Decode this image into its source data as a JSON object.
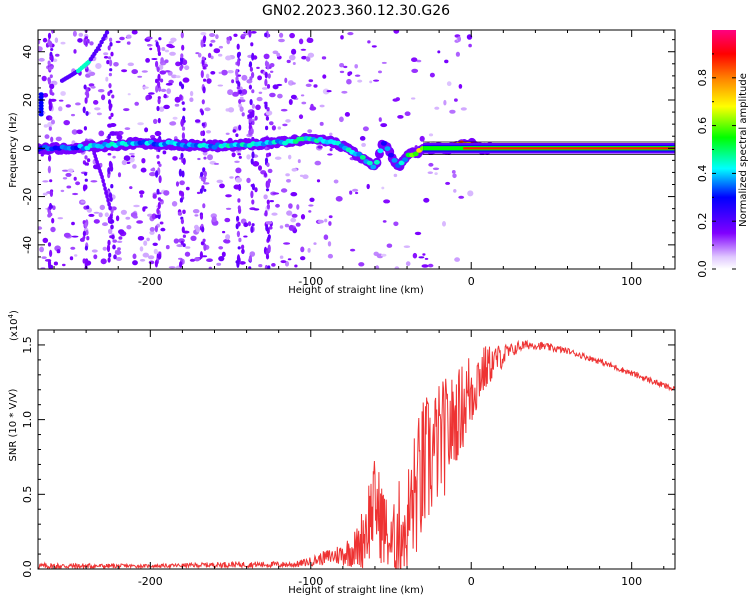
{
  "title": "GN02.2023.360.12.30.G26",
  "chart_data": [
    {
      "type": "heatmap",
      "title": "GN02.2023.360.12.30.G26",
      "xlabel": "Height of straight line (km)",
      "ylabel": "Frequency (Hz)",
      "xlim": [
        -270,
        127
      ],
      "ylim": [
        -50,
        49
      ],
      "xticks": [
        "-200",
        "-100",
        "0",
        "100"
      ],
      "xtick_values": [
        -200,
        -100,
        0,
        100
      ],
      "yticks": [
        "-40",
        "-20",
        "0",
        "20",
        "40"
      ],
      "ytick_values": [
        -40,
        -20,
        0,
        20,
        40
      ],
      "colorbar": {
        "label": "Normalized spectral amplitude",
        "range": [
          0,
          1
        ],
        "ticks": [
          "0.0",
          "0.2",
          "0.4",
          "0.6",
          "0.8"
        ],
        "tick_values": [
          0.0,
          0.2,
          0.4,
          0.6,
          0.8
        ],
        "colormap": [
          "#ffffff",
          "#c8b4ff",
          "#8000ff",
          "#0000ff",
          "#00ffff",
          "#00ff00",
          "#ffff00",
          "#ff8000",
          "#ff0000",
          "#ff0080"
        ]
      },
      "ridge": {
        "x": [
          -270,
          -250,
          -230,
          -210,
          -190,
          -170,
          -150,
          -130,
          -110,
          -100,
          -90,
          -80,
          -70,
          -60,
          -55,
          -50,
          -45,
          -40,
          -35,
          -30,
          -25,
          -20,
          -15,
          -10,
          -5,
          0,
          5,
          10,
          20,
          40,
          60,
          80,
          100,
          127
        ],
        "frequency": [
          0,
          0,
          1,
          2,
          2,
          1,
          1,
          2,
          3,
          4,
          3,
          1,
          -3,
          -8,
          3,
          -3,
          -8,
          -3,
          -2,
          0,
          0,
          0,
          0,
          1,
          2,
          2,
          0,
          0,
          0,
          0,
          0,
          0,
          0,
          0
        ],
        "amplitude": [
          0.35,
          0.35,
          0.45,
          0.4,
          0.4,
          0.4,
          0.45,
          0.4,
          0.45,
          0.45,
          0.45,
          0.45,
          0.45,
          0.45,
          0.35,
          0.35,
          0.35,
          0.5,
          0.6,
          0.8,
          0.8,
          0.85,
          0.85,
          0.85,
          0.9,
          0.95,
          0.85,
          0.85,
          0.95,
          0.95,
          0.95,
          0.95,
          0.95,
          0.95
        ]
      },
      "chirp": {
        "x": [
          -255,
          -245,
          -238,
          -232,
          -227
        ],
        "frequency": [
          28,
          32,
          36,
          42,
          48
        ]
      },
      "branch": {
        "x": [
          -235,
          -230,
          -225,
          -222
        ],
        "frequency": [
          -2,
          -12,
          -25,
          -45
        ]
      }
    },
    {
      "type": "line",
      "xlabel": "Height of straight line (km)",
      "ylabel": "SNR (10 * V/V)",
      "y_exponent_label": "(x10",
      "y_exponent": "4",
      "y_exponent_close": ")",
      "xlim": [
        -270,
        127
      ],
      "ylim": [
        0,
        1.6
      ],
      "xticks": [
        "-200",
        "-100",
        "0",
        "100"
      ],
      "xtick_values": [
        -200,
        -100,
        0,
        100
      ],
      "yticks": [
        "0.0",
        "0.5",
        "1.0",
        "1.5"
      ],
      "ytick_values": [
        0.0,
        0.5,
        1.0,
        1.5
      ],
      "color": "#ee3333",
      "series": [
        {
          "x": [
            -270,
            -250,
            -200,
            -150,
            -110,
            -100,
            -90,
            -80,
            -70,
            -65,
            -60,
            -55,
            -50,
            -45,
            -40,
            -35,
            -30,
            -25,
            -20,
            -15,
            -10,
            -5,
            0,
            5,
            10,
            15,
            20,
            25,
            30,
            35,
            40,
            60,
            80,
            100,
            127
          ],
          "values": [
            0.02,
            0.02,
            0.02,
            0.03,
            0.03,
            0.05,
            0.08,
            0.1,
            0.15,
            0.3,
            0.45,
            0.3,
            0.15,
            0.25,
            0.3,
            0.5,
            0.65,
            0.75,
            0.85,
            0.9,
            1.0,
            1.1,
            1.2,
            1.3,
            1.35,
            1.4,
            1.43,
            1.46,
            1.49,
            1.5,
            1.5,
            1.46,
            1.39,
            1.31,
            1.2
          ],
          "noise": [
            0.02,
            0.02,
            0.01,
            0.02,
            0.02,
            0.03,
            0.05,
            0.08,
            0.15,
            0.3,
            0.3,
            0.3,
            0.2,
            0.35,
            0.4,
            0.45,
            0.5,
            0.45,
            0.4,
            0.4,
            0.3,
            0.3,
            0.3,
            0.2,
            0.15,
            0.1,
            0.08,
            0.05,
            0.04,
            0.03,
            0.03,
            0.02,
            0.02,
            0.02,
            0.02
          ]
        }
      ]
    }
  ]
}
